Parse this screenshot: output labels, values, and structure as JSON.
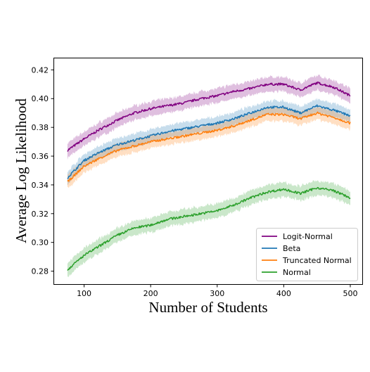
{
  "chart_data": {
    "type": "line",
    "title": "",
    "xlabel": "Number of Students",
    "ylabel": "Average Log Likelihood",
    "xlim": [
      55,
      518
    ],
    "ylim": [
      0.271,
      0.428
    ],
    "xticks": [
      100,
      200,
      300,
      400,
      500
    ],
    "yticks": [
      0.28,
      0.3,
      0.32,
      0.34,
      0.36,
      0.38,
      0.4,
      0.42
    ],
    "grid": false,
    "legend_position": "lower-right",
    "x": [
      75,
      100,
      125,
      150,
      175,
      200,
      225,
      250,
      275,
      300,
      325,
      350,
      375,
      400,
      425,
      450,
      475,
      500
    ],
    "series": [
      {
        "name": "Logit-Normal",
        "color": "#800080",
        "values": [
          0.364,
          0.372,
          0.379,
          0.385,
          0.39,
          0.393,
          0.395,
          0.397,
          0.4,
          0.402,
          0.405,
          0.407,
          0.41,
          0.41,
          0.406,
          0.411,
          0.408,
          0.402
        ],
        "band": 0.005
      },
      {
        "name": "Beta",
        "color": "#1f77b4",
        "values": [
          0.345,
          0.357,
          0.363,
          0.368,
          0.371,
          0.374,
          0.377,
          0.379,
          0.381,
          0.383,
          0.386,
          0.39,
          0.394,
          0.394,
          0.39,
          0.395,
          0.392,
          0.388
        ],
        "band": 0.0045
      },
      {
        "name": "Truncated Normal",
        "color": "#ff7f0e",
        "values": [
          0.342,
          0.353,
          0.359,
          0.364,
          0.367,
          0.37,
          0.372,
          0.374,
          0.376,
          0.378,
          0.381,
          0.385,
          0.389,
          0.389,
          0.386,
          0.39,
          0.387,
          0.383
        ],
        "band": 0.0045
      },
      {
        "name": "Normal",
        "color": "#2ca02c",
        "values": [
          0.281,
          0.291,
          0.298,
          0.305,
          0.31,
          0.312,
          0.316,
          0.318,
          0.32,
          0.322,
          0.326,
          0.331,
          0.335,
          0.337,
          0.334,
          0.338,
          0.336,
          0.331
        ],
        "band": 0.005
      }
    ]
  }
}
